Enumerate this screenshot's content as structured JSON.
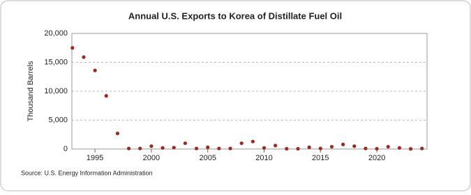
{
  "chart_data": {
    "type": "scatter",
    "title": "Annual U.S. Exports to Korea of Distillate Fuel Oil",
    "ylabel": "Thousand Barrels",
    "source": "Source: U.S. Energy Information Administration",
    "x": [
      1993,
      1994,
      1995,
      1996,
      1997,
      1998,
      1999,
      2000,
      2001,
      2002,
      2003,
      2004,
      2005,
      2006,
      2007,
      2008,
      2009,
      2010,
      2011,
      2012,
      2013,
      2014,
      2015,
      2016,
      2017,
      2018,
      2019,
      2020,
      2021,
      2022,
      2023,
      2024
    ],
    "values": [
      17500,
      15900,
      13600,
      9200,
      2700,
      100,
      100,
      500,
      200,
      250,
      1000,
      100,
      300,
      100,
      100,
      1000,
      1300,
      200,
      600,
      50,
      50,
      300,
      100,
      400,
      800,
      500,
      100,
      50,
      400,
      200,
      30,
      100
    ],
    "color": "#a0281e",
    "xlim": [
      1992.95,
      2024.45
    ],
    "xticks": [
      1995,
      2000,
      2005,
      2010,
      2015,
      2020
    ],
    "ylim": [
      0,
      20000
    ],
    "yticks": [
      0,
      {
        "value": 5000,
        "label": "5,000"
      },
      {
        "value": 10000,
        "label": "10,000"
      },
      {
        "value": 15000,
        "label": "15,000"
      },
      {
        "value": 20000,
        "label": "20,000"
      }
    ],
    "grid": true
  }
}
